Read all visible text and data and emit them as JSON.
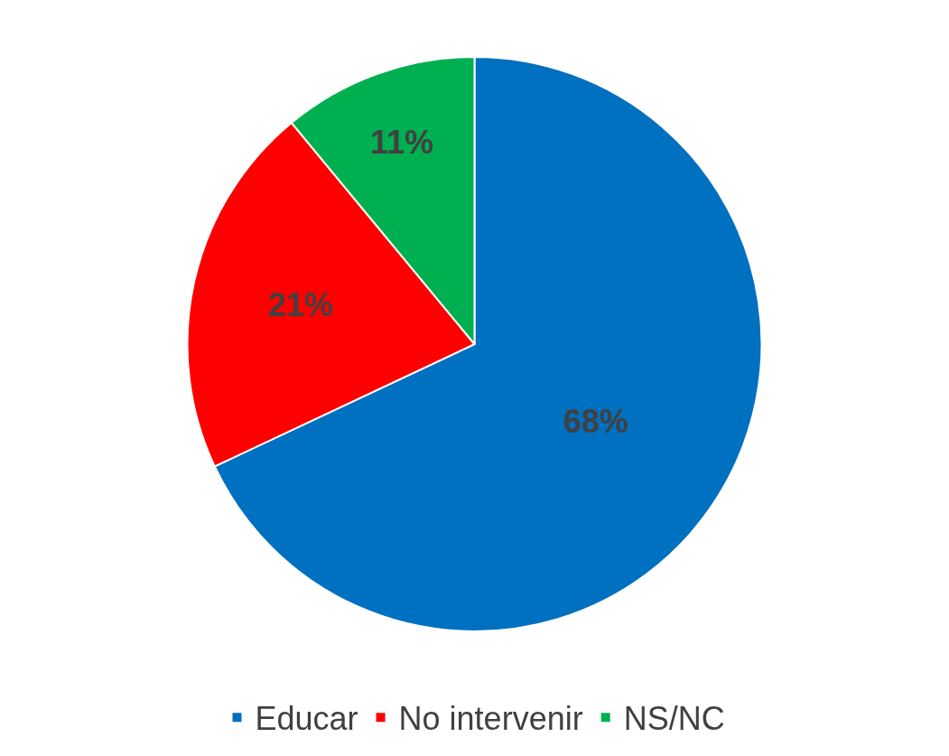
{
  "chart_data": {
    "type": "pie",
    "categories": [
      "Educar",
      "No intervenir",
      "NS/NC"
    ],
    "values": [
      68,
      21,
      11
    ],
    "value_labels": [
      "68%",
      "21%",
      "11%"
    ],
    "colors": [
      "#0070c0",
      "#ff0000",
      "#00b050"
    ],
    "legend": "bottom"
  }
}
